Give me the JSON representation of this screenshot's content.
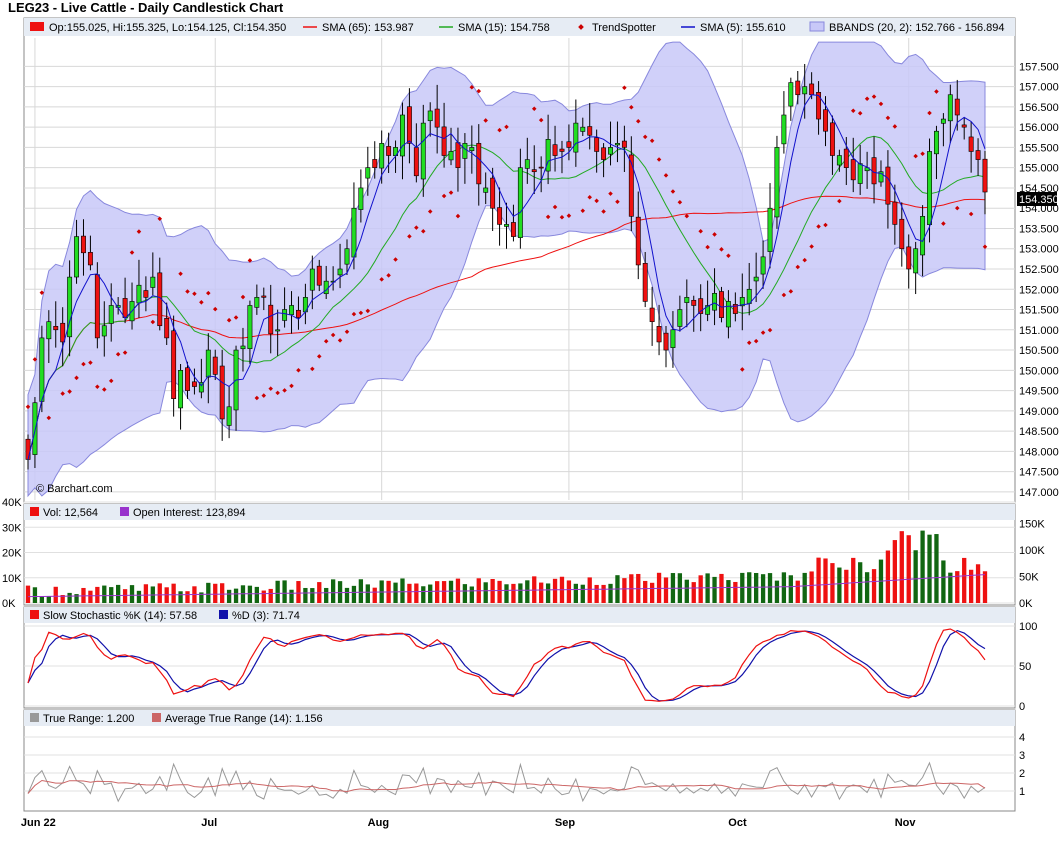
{
  "title": "LEG23 - Live Cattle - Daily Candlestick Chart",
  "watermark": "© Barchart.com",
  "colors": {
    "up": "#22dd22",
    "down": "#ee1111",
    "sma65": "#ee1111",
    "sma15": "#22aa22",
    "sma5": "#1111cc",
    "bbands_fill": "#c8c8f8",
    "bbands_line": "#8888dd",
    "trendspotter": "#cc0000",
    "volume_up": "#116611",
    "volume_down": "#ee1111",
    "open_interest": "#9933cc",
    "stoch_k": "#ee1111",
    "stoch_d": "#1111aa",
    "true_range": "#999999",
    "atr": "#cc6666",
    "panel_bg": "#e6ecf4",
    "last_price_bg": "#000000"
  },
  "legend": {
    "ohlc": "Op:155.025, Hi:155.325, Lo:154.125, Cl:154.350",
    "sma65": "SMA (65): 153.987",
    "sma15": "SMA (15): 154.758",
    "trendspotter": "TrendSpotter",
    "sma5": "SMA (5): 155.610",
    "bbands": "BBANDS (20, 2): 152.766 - 156.894",
    "volume": "Vol: 12,564",
    "open_interest": "Open Interest: 123,894",
    "stoch_k": "Slow Stochastic %K (14): 57.58",
    "stoch_d": "%D (3): 71.74",
    "true_range": "True Range: 1.200",
    "atr": "Average True Range (14): 1.156"
  },
  "last_price": "154.350",
  "chart_data": [
    {
      "type": "candlestick",
      "title": "LEG23 - Live Cattle - Daily Candlestick Chart",
      "x_labels": [
        "Jun 22",
        "Jul",
        "Aug",
        "Sep",
        "Oct",
        "Nov"
      ],
      "x_label_index": [
        1,
        27,
        51,
        78,
        103,
        127
      ],
      "y_range": [
        146.8,
        158.2
      ],
      "y_ticks": [
        "147.000",
        "147.500",
        "148.000",
        "148.500",
        "149.000",
        "149.500",
        "150.000",
        "150.500",
        "151.000",
        "151.500",
        "152.000",
        "152.500",
        "153.000",
        "153.500",
        "154.000",
        "154.500",
        "155.000",
        "155.500",
        "156.000",
        "156.500",
        "157.000",
        "157.500"
      ],
      "closes": [
        147.8,
        149.2,
        150.8,
        151.2,
        151.0,
        150.7,
        152.3,
        153.3,
        152.9,
        152.6,
        150.8,
        151.1,
        151.6,
        151.6,
        151.3,
        151.7,
        152.1,
        151.8,
        152.3,
        151.1,
        150.8,
        149.3,
        150.0,
        149.5,
        149.6,
        149.7,
        150.5,
        149.9,
        148.8,
        149.1,
        150.5,
        150.6,
        151.6,
        151.8,
        151.8,
        150.9,
        151.0,
        151.5,
        151.6,
        151.3,
        151.8,
        152.5,
        152.1,
        152.2,
        152.2,
        152.5,
        153.0,
        154.0,
        154.5,
        155.0,
        155.0,
        155.6,
        155.3,
        155.5,
        156.3,
        155.6,
        154.8,
        156.1,
        156.4,
        156.0,
        155.3,
        155.4,
        155.0,
        155.6,
        155.5,
        154.6,
        154.5,
        154.0,
        153.6,
        153.6,
        153.3,
        155.0,
        155.2,
        154.9,
        155.0,
        155.7,
        155.3,
        155.4,
        155.5,
        156.1,
        156.0,
        155.8,
        155.4,
        155.2,
        155.5,
        155.6,
        155.5,
        153.8,
        152.6,
        151.7,
        151.2,
        150.7,
        150.5,
        151.0,
        151.5,
        151.8,
        151.6,
        151.4,
        151.6,
        151.9,
        151.3,
        151.7,
        151.4,
        151.8,
        152.0,
        152.3,
        152.8,
        154.0,
        155.5,
        156.3,
        157.1,
        156.8,
        157.0,
        156.8,
        156.2,
        155.9,
        155.3,
        155.3,
        155.0,
        154.7,
        155.1,
        155.0,
        154.6,
        154.9,
        154.1,
        153.6,
        153.0,
        152.5,
        153.0,
        153.8,
        155.4,
        155.9,
        156.2,
        156.8,
        156.3,
        156.0,
        155.4,
        155.2,
        154.4
      ],
      "series": [
        {
          "name": "SMA (65)",
          "last": 153.987
        },
        {
          "name": "SMA (15)",
          "last": 154.758
        },
        {
          "name": "SMA (5)",
          "last": 155.61
        },
        {
          "name": "BBANDS (20, 2)",
          "lower": 152.766,
          "upper": 156.894
        },
        {
          "name": "TrendSpotter"
        }
      ]
    },
    {
      "type": "bar",
      "title": "Volume / Open Interest",
      "y_ticks_left": [
        "0K",
        "10K",
        "20K",
        "30K",
        "40K"
      ],
      "y_ticks_right": [
        "0K",
        "50K",
        "100K",
        "150K"
      ],
      "last_volume": 12564,
      "last_open_interest": 123894
    },
    {
      "type": "line",
      "title": "Slow Stochastic",
      "y_range": [
        0,
        100
      ],
      "y_ticks": [
        "0",
        "50",
        "100"
      ],
      "last_k": 57.58,
      "last_d": 71.74
    },
    {
      "type": "line",
      "title": "True Range",
      "y_range": [
        0,
        4.5
      ],
      "y_ticks": [
        "1",
        "2",
        "3",
        "4"
      ],
      "last_tr": 1.2,
      "last_atr": 1.156
    }
  ]
}
